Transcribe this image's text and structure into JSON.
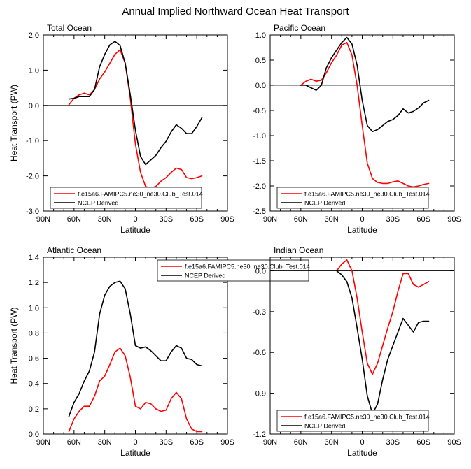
{
  "figure": {
    "title": "Annual Implied Northward Ocean Heat Transport",
    "series_colors": {
      "model": "#ff0000",
      "ncep": "#000000"
    }
  },
  "chart_data": [
    {
      "type": "line",
      "title": "Total Ocean",
      "xlabel": "Latitude",
      "ylabel": "Heat Transport (PW)",
      "x_ticks": [
        "90N",
        "60N",
        "30N",
        "0",
        "30S",
        "60S",
        "90S"
      ],
      "xlim": [
        90,
        -90
      ],
      "ylim": [
        -3.0,
        2.0
      ],
      "y_ticks": [
        "-3.0",
        "-2.0",
        "-1.0",
        "0.0",
        "1.0",
        "2.0"
      ],
      "y_tick_values": [
        -3.0,
        -2.0,
        -1.0,
        0.0,
        1.0,
        2.0
      ],
      "legend": {
        "entries": [
          "f.e15a6.FAMIPC5.ne30_ne30.Club_Test.014",
          "NCEP Derived"
        ],
        "position": "bottom-left"
      },
      "series": [
        {
          "name": "f.e15a6.FAMIPC5.ne30_ne30.Club_Test.014",
          "x": [
            65,
            60,
            55,
            50,
            45,
            40,
            35,
            30,
            25,
            20,
            15,
            10,
            5,
            0,
            -5,
            -10,
            -15,
            -20,
            -25,
            -30,
            -35,
            -40,
            -45,
            -50,
            -55,
            -60,
            -65
          ],
          "y": [
            0.02,
            0.2,
            0.3,
            0.35,
            0.3,
            0.45,
            0.75,
            0.95,
            1.2,
            1.45,
            1.58,
            1.2,
            0.2,
            -1.1,
            -1.9,
            -2.3,
            -2.35,
            -2.3,
            -2.15,
            -2.05,
            -1.9,
            -1.78,
            -1.82,
            -2.05,
            -2.08,
            -2.05,
            -2.0
          ]
        },
        {
          "name": "NCEP Derived",
          "x": [
            65,
            60,
            55,
            50,
            45,
            40,
            35,
            30,
            25,
            20,
            15,
            10,
            5,
            0,
            -5,
            -10,
            -15,
            -20,
            -25,
            -30,
            -35,
            -40,
            -45,
            -50,
            -55,
            -60,
            -65
          ],
          "y": [
            0.18,
            0.2,
            0.25,
            0.25,
            0.25,
            0.45,
            1.1,
            1.45,
            1.72,
            1.82,
            1.7,
            1.2,
            0.3,
            -0.7,
            -1.45,
            -1.68,
            -1.55,
            -1.42,
            -1.2,
            -1.02,
            -0.75,
            -0.55,
            -0.65,
            -0.8,
            -0.8,
            -0.6,
            -0.35
          ]
        }
      ]
    },
    {
      "type": "line",
      "title": "Pacific Ocean",
      "xlabel": "Latitude",
      "ylabel": "",
      "x_ticks": [
        "90N",
        "60N",
        "30N",
        "0",
        "30S",
        "60S",
        "90S"
      ],
      "xlim": [
        90,
        -90
      ],
      "ylim": [
        -2.5,
        1.0
      ],
      "y_ticks": [
        "-2.5",
        "-2.0",
        "-1.5",
        "-1.0",
        "-0.5",
        "0.0",
        "0.5",
        "1.0"
      ],
      "y_tick_values": [
        -2.5,
        -2.0,
        -1.5,
        -1.0,
        -0.5,
        0.0,
        0.5,
        1.0
      ],
      "legend": {
        "entries": [
          "f.e15a6.FAMIPC5.ne30_ne30.Club_Test.014",
          "NCEP Derived"
        ],
        "position": "bottom-left"
      },
      "series": [
        {
          "name": "f.e15a6.FAMIPC5.ne30_ne30.Club_Test.014",
          "x": [
            60,
            55,
            50,
            45,
            40,
            35,
            30,
            25,
            20,
            15,
            10,
            5,
            0,
            -5,
            -10,
            -15,
            -20,
            -25,
            -30,
            -35,
            -40,
            -45,
            -50,
            -55,
            -60,
            -65
          ],
          "y": [
            0.0,
            0.08,
            0.12,
            0.08,
            0.1,
            0.25,
            0.45,
            0.6,
            0.8,
            0.85,
            0.6,
            0.0,
            -0.8,
            -1.55,
            -1.85,
            -1.93,
            -1.95,
            -1.95,
            -1.92,
            -1.9,
            -1.95,
            -2.0,
            -2.02,
            -2.0,
            -1.97,
            -1.95
          ]
        },
        {
          "name": "NCEP Derived",
          "x": [
            60,
            55,
            50,
            45,
            40,
            35,
            30,
            25,
            20,
            15,
            10,
            5,
            0,
            -5,
            -10,
            -15,
            -20,
            -25,
            -30,
            -35,
            -40,
            -45,
            -50,
            -55,
            -60,
            -65
          ],
          "y": [
            0.0,
            0.0,
            -0.05,
            -0.1,
            0.0,
            0.35,
            0.55,
            0.7,
            0.85,
            0.95,
            0.82,
            0.4,
            -0.3,
            -0.8,
            -0.92,
            -0.88,
            -0.8,
            -0.72,
            -0.68,
            -0.6,
            -0.47,
            -0.55,
            -0.52,
            -0.45,
            -0.35,
            -0.3
          ]
        }
      ]
    },
    {
      "type": "line",
      "title": "Atlantic Ocean",
      "xlabel": "Latitude",
      "ylabel": "Heat Transport (PW)",
      "x_ticks": [
        "90N",
        "60N",
        "30N",
        "0",
        "30S",
        "60S",
        "90S"
      ],
      "xlim": [
        90,
        -90
      ],
      "ylim": [
        0.0,
        1.4
      ],
      "y_ticks": [
        "0.0",
        "0.2",
        "0.4",
        "0.6",
        "0.8",
        "1.0",
        "1.2",
        "1.4"
      ],
      "y_tick_values": [
        0.0,
        0.2,
        0.4,
        0.6,
        0.8,
        1.0,
        1.2,
        1.4
      ],
      "legend": {
        "entries": [
          "f.e15a6.FAMIPC5.ne30_ne30.Club_Test.014",
          "NCEP Derived"
        ],
        "position": "top-right"
      },
      "series": [
        {
          "name": "f.e15a6.FAMIPC5.ne30_ne30.Club_Test.014",
          "x": [
            65,
            60,
            55,
            50,
            45,
            40,
            35,
            30,
            25,
            20,
            15,
            10,
            5,
            0,
            -5,
            -10,
            -15,
            -20,
            -25,
            -30,
            -35,
            -40,
            -45,
            -50,
            -55,
            -60,
            -65
          ],
          "y": [
            0.02,
            0.12,
            0.18,
            0.22,
            0.22,
            0.3,
            0.42,
            0.46,
            0.55,
            0.65,
            0.68,
            0.62,
            0.45,
            0.22,
            0.2,
            0.25,
            0.24,
            0.2,
            0.18,
            0.19,
            0.28,
            0.33,
            0.28,
            0.12,
            0.04,
            0.02,
            0.02
          ]
        },
        {
          "name": "NCEP Derived",
          "x": [
            65,
            60,
            55,
            50,
            45,
            40,
            35,
            30,
            25,
            20,
            15,
            10,
            5,
            0,
            -5,
            -10,
            -15,
            -20,
            -25,
            -30,
            -35,
            -40,
            -45,
            -50,
            -55,
            -60,
            -65
          ],
          "y": [
            0.14,
            0.25,
            0.32,
            0.42,
            0.5,
            0.65,
            0.95,
            1.1,
            1.17,
            1.2,
            1.21,
            1.15,
            0.95,
            0.7,
            0.68,
            0.69,
            0.66,
            0.62,
            0.58,
            0.58,
            0.65,
            0.7,
            0.68,
            0.6,
            0.59,
            0.55,
            0.54
          ]
        }
      ]
    },
    {
      "type": "line",
      "title": "Indian Ocean",
      "xlabel": "Latitude",
      "ylabel": "",
      "x_ticks": [
        "90N",
        "60N",
        "30N",
        "0",
        "30S",
        "60S",
        "90S"
      ],
      "xlim": [
        90,
        -90
      ],
      "ylim": [
        -1.2,
        0.1
      ],
      "y_ticks": [
        "-1.2",
        "-0.9",
        "-0.6",
        "-0.3",
        "0.0"
      ],
      "y_tick_values": [
        -1.2,
        -0.9,
        -0.6,
        -0.3,
        0.0
      ],
      "legend": {
        "entries": [
          "f.e15a6.FAMIPC5.ne30_ne30.Club_Test.014",
          "NCEP Derived"
        ],
        "position": "bottom-left"
      },
      "series": [
        {
          "name": "f.e15a6.FAMIPC5.ne30_ne30.Club_Test.014",
          "x": [
            25,
            20,
            15,
            10,
            5,
            0,
            -5,
            -10,
            -15,
            -20,
            -25,
            -30,
            -35,
            -40,
            -45,
            -50,
            -55,
            -60,
            -65
          ],
          "y": [
            0.0,
            0.05,
            0.08,
            0.0,
            -0.2,
            -0.45,
            -0.68,
            -0.76,
            -0.68,
            -0.55,
            -0.42,
            -0.3,
            -0.15,
            -0.02,
            -0.02,
            -0.1,
            -0.12,
            -0.1,
            -0.08
          ]
        },
        {
          "name": "NCEP Derived",
          "x": [
            25,
            20,
            15,
            10,
            5,
            0,
            -5,
            -10,
            -15,
            -20,
            -25,
            -30,
            -35,
            -40,
            -45,
            -50,
            -55,
            -60,
            -65
          ],
          "y": [
            0.0,
            -0.03,
            -0.08,
            -0.2,
            -0.42,
            -0.65,
            -0.92,
            -1.05,
            -0.98,
            -0.8,
            -0.65,
            -0.55,
            -0.45,
            -0.35,
            -0.4,
            -0.45,
            -0.38,
            -0.37,
            -0.37
          ]
        }
      ]
    }
  ]
}
